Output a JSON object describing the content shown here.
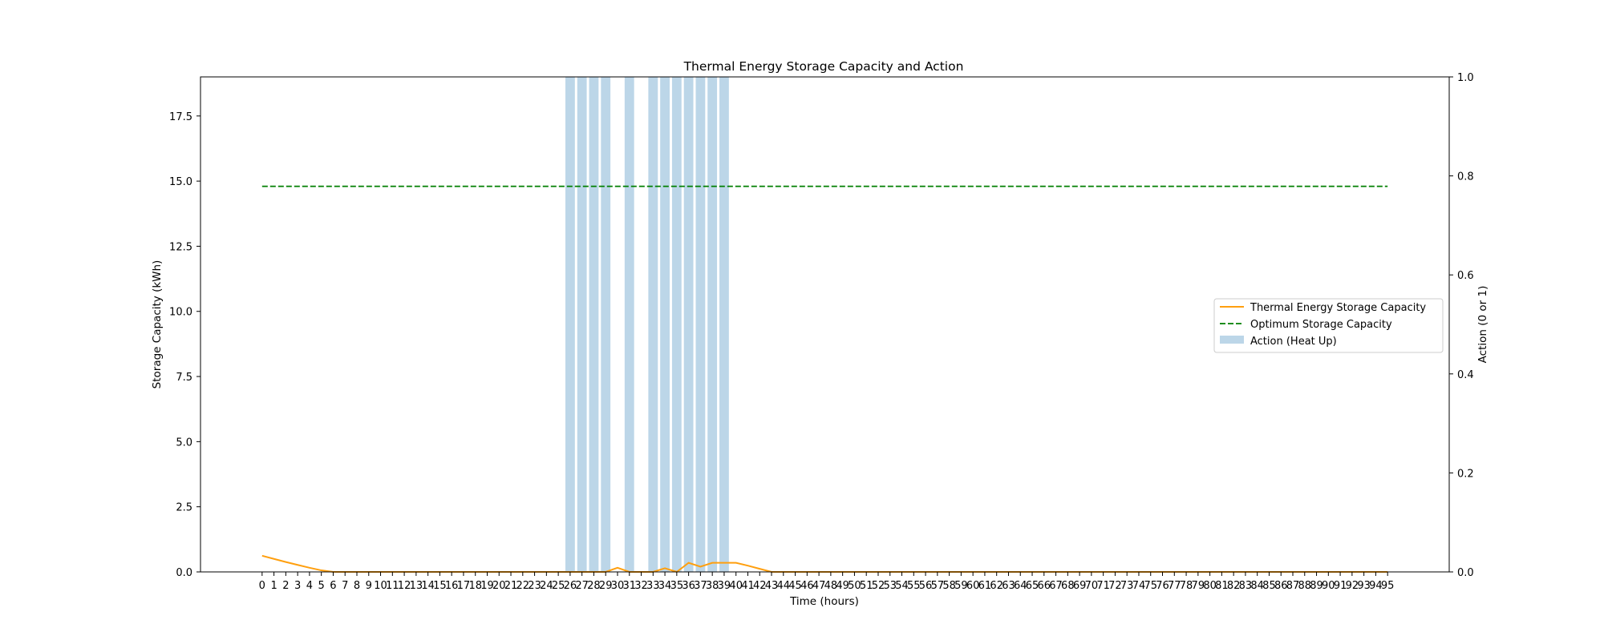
{
  "chart_data": {
    "type": "bar+line",
    "title": "Thermal Energy Storage Capacity and Action",
    "xlabel": "Time (hours)",
    "ylabel_left": "Storage Capacity (kWh)",
    "ylabel_right": "Action (0 or 1)",
    "ylim_left": [
      0,
      19
    ],
    "ylim_right": [
      0,
      1
    ],
    "yticks_left": [
      0,
      2.5,
      5,
      7.5,
      10,
      12.5,
      15,
      17.5
    ],
    "ytick_labels_left": [
      "0.0",
      "2.5",
      "5.0",
      "7.5",
      "10.0",
      "12.5",
      "15.0",
      "17.5"
    ],
    "yticks_right": [
      0,
      0.2,
      0.4,
      0.6,
      0.8,
      1.0
    ],
    "ytick_labels_right": [
      "0.0",
      "0.2",
      "0.4",
      "0.6",
      "0.8",
      "1.0"
    ],
    "x": [
      0,
      1,
      2,
      3,
      4,
      5,
      6,
      7,
      8,
      9,
      10,
      11,
      12,
      13,
      14,
      15,
      16,
      17,
      18,
      19,
      20,
      21,
      22,
      23,
      24,
      25,
      26,
      27,
      28,
      29,
      30,
      31,
      32,
      33,
      34,
      35,
      36,
      37,
      38,
      39,
      40,
      41,
      42,
      43,
      44,
      45,
      46,
      47,
      48,
      49,
      50,
      51,
      52,
      53,
      54,
      55,
      56,
      57,
      58,
      59,
      60,
      61,
      62,
      63,
      64,
      65,
      66,
      67,
      68,
      69,
      70,
      71,
      72,
      73,
      74,
      75,
      76,
      77,
      78,
      79,
      80,
      81,
      82,
      83,
      84,
      85,
      86,
      87,
      88,
      89,
      90,
      91,
      92,
      93,
      94,
      95
    ],
    "xlim": [
      -5.2,
      100.2
    ],
    "series": [
      {
        "name": "Thermal Energy Storage Capacity",
        "axis": "left",
        "kind": "line",
        "color": "#ff9f0e",
        "values": [
          0.62,
          0.5,
          0.38,
          0.27,
          0.16,
          0.06,
          0,
          0,
          0,
          0,
          0,
          0,
          0,
          0,
          0,
          0,
          0,
          0,
          0,
          0,
          0,
          0,
          0,
          0,
          0,
          0,
          0,
          0,
          0,
          0,
          0.16,
          0,
          0,
          0,
          0.14,
          0,
          0.35,
          0.2,
          0.35,
          0.35,
          0.35,
          0.24,
          0.12,
          0,
          0,
          0,
          0,
          0,
          0,
          0,
          0,
          0,
          0,
          0,
          0,
          0,
          0,
          0,
          0,
          0,
          0,
          0,
          0,
          0,
          0,
          0,
          0,
          0,
          0,
          0,
          0,
          0,
          0,
          0,
          0,
          0,
          0,
          0,
          0,
          0,
          0,
          0,
          0,
          0,
          0,
          0,
          0,
          0,
          0,
          0,
          0,
          0,
          0,
          0,
          0,
          0
        ]
      },
      {
        "name": "Optimum Storage Capacity",
        "axis": "left",
        "kind": "dashed-line",
        "color": "#007f00",
        "values": [
          14.8,
          14.8,
          14.8,
          14.8,
          14.8,
          14.8,
          14.8,
          14.8,
          14.8,
          14.8,
          14.8,
          14.8,
          14.8,
          14.8,
          14.8,
          14.8,
          14.8,
          14.8,
          14.8,
          14.8,
          14.8,
          14.8,
          14.8,
          14.8,
          14.8,
          14.8,
          14.8,
          14.8,
          14.8,
          14.8,
          14.8,
          14.8,
          14.8,
          14.8,
          14.8,
          14.8,
          14.8,
          14.8,
          14.8,
          14.8,
          14.8,
          14.8,
          14.8,
          14.8,
          14.8,
          14.8,
          14.8,
          14.8,
          14.8,
          14.8,
          14.8,
          14.8,
          14.8,
          14.8,
          14.8,
          14.8,
          14.8,
          14.8,
          14.8,
          14.8,
          14.8,
          14.8,
          14.8,
          14.8,
          14.8,
          14.8,
          14.8,
          14.8,
          14.8,
          14.8,
          14.8,
          14.8,
          14.8,
          14.8,
          14.8,
          14.8,
          14.8,
          14.8,
          14.8,
          14.8,
          14.8,
          14.8,
          14.8,
          14.8,
          14.8,
          14.8,
          14.8,
          14.8,
          14.8,
          14.8,
          14.8,
          14.8,
          14.8,
          14.8,
          14.8,
          14.8
        ]
      },
      {
        "name": "Action (Heat Up)",
        "axis": "right",
        "kind": "bar",
        "color": "#bcd6e8",
        "values": [
          0,
          0,
          0,
          0,
          0,
          0,
          0,
          0,
          0,
          0,
          0,
          0,
          0,
          0,
          0,
          0,
          0,
          0,
          0,
          0,
          0,
          0,
          0,
          0,
          0,
          0,
          1,
          1,
          1,
          1,
          0,
          1,
          0,
          1,
          1,
          1,
          1,
          1,
          1,
          1,
          0,
          0,
          0,
          0,
          0,
          0,
          0,
          0,
          0,
          0,
          0,
          0,
          0,
          0,
          0,
          0,
          0,
          0,
          0,
          0,
          0,
          0,
          0,
          0,
          0,
          0,
          0,
          0,
          0,
          0,
          0,
          0,
          0,
          0,
          0,
          0,
          0,
          0,
          0,
          0,
          0,
          0,
          0,
          0,
          0,
          0,
          0,
          0,
          0,
          0,
          0,
          0,
          0,
          0,
          0,
          0
        ]
      }
    ],
    "legend": {
      "placement": "center-right",
      "entries": [
        "Thermal Energy Storage Capacity",
        "Optimum Storage Capacity",
        "Action (Heat Up)"
      ]
    }
  }
}
